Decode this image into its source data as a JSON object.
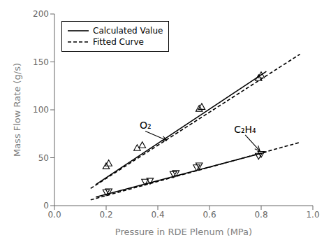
{
  "chart_data": {
    "type": "line",
    "title": "",
    "xlabel": "Pressure in RDE Plenum (MPa)",
    "ylabel": "Mass Flow Rate (g/s)",
    "xlim": [
      0.0,
      1.0
    ],
    "ylim": [
      0,
      200
    ],
    "xticks": [
      {
        "value": 0.0,
        "label": "0.0"
      },
      0.2,
      0.4,
      0.6,
      0.8,
      {
        "value": 1.0,
        "label": "1.0"
      }
    ],
    "yticks": [
      0,
      50,
      100,
      150,
      200
    ],
    "grid": false,
    "legend": "upper left",
    "series": [
      {
        "name": "Calculated Value",
        "type": "line",
        "line_style": "solid",
        "color": "#000000",
        "x": [
          0.16,
          0.82
        ],
        "values": [
          22,
          140
        ]
      },
      {
        "name": "Fitted Curve",
        "type": "line",
        "line_style": "dashed",
        "color": "#000000",
        "x": [
          0.14,
          0.95
        ],
        "values": [
          18,
          158
        ]
      },
      {
        "name": "Calculated Value",
        "type": "line",
        "line_style": "solid",
        "color": "#000000",
        "x": [
          0.16,
          0.82
        ],
        "values": [
          9,
          56
        ]
      },
      {
        "name": "Fitted Curve",
        "type": "line",
        "line_style": "dashed",
        "color": "#000000",
        "x": [
          0.14,
          0.95
        ],
        "values": [
          6,
          66
        ]
      },
      {
        "type": "scatter",
        "marker": "triangle-up",
        "color": "#000000",
        "x": [
          0.2,
          0.21,
          0.32,
          0.34,
          0.56,
          0.57,
          0.79,
          0.8
        ],
        "values": [
          41,
          44,
          60,
          63,
          101,
          103,
          133,
          136
        ]
      },
      {
        "type": "scatter",
        "marker": "triangle-down",
        "color": "#000000",
        "x": [
          0.2,
          0.21,
          0.35,
          0.37,
          0.46,
          0.47,
          0.55,
          0.56,
          0.79,
          0.8
        ],
        "values": [
          14,
          15,
          25,
          26,
          33,
          34,
          40,
          42,
          52,
          54
        ]
      }
    ],
    "annotations": [
      {
        "text": "O₂",
        "x": 0.33,
        "y": 80,
        "arrow_x": 0.435,
        "arrow_y": 68
      },
      {
        "text": "C₂H₄",
        "x": 0.695,
        "y": 76,
        "arrow_x": 0.795,
        "arrow_y": 57
      }
    ]
  }
}
